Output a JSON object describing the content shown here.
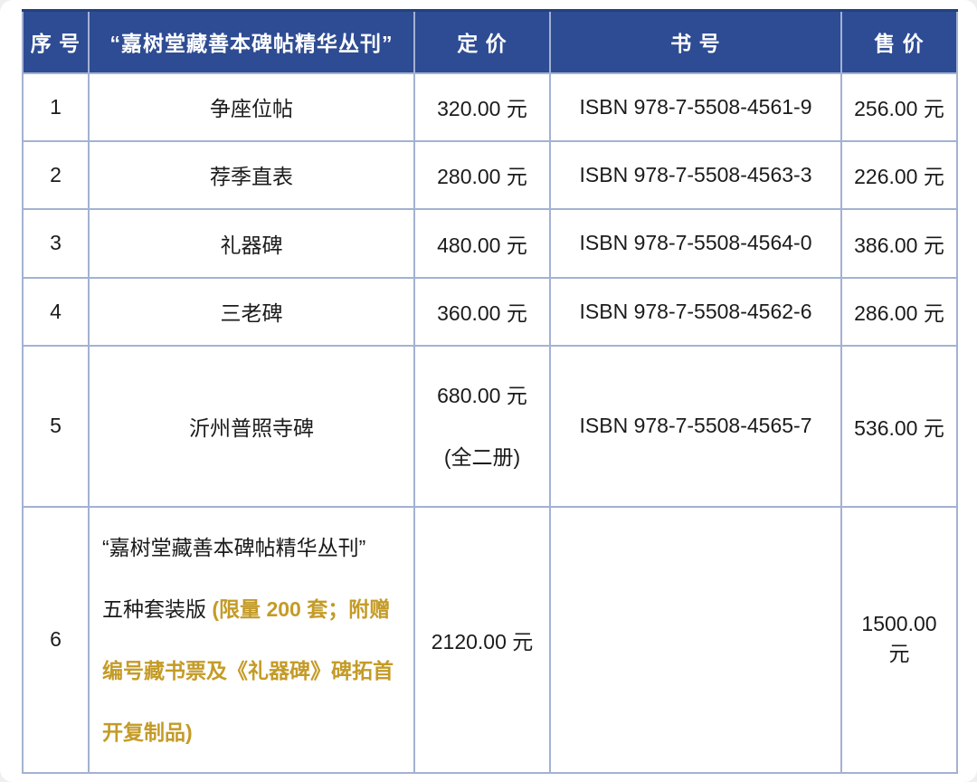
{
  "colors": {
    "header_background": "#2e4c93",
    "header_text": "#ffffff",
    "grid_border": "#a3b2d2",
    "body_text": "#1b1b1b",
    "highlight_gold": "#c49b27",
    "page_background": "#efefef",
    "card_background": "#ffffff"
  },
  "table": {
    "columns": [
      {
        "label": "序 号"
      },
      {
        "label": "“嘉树堂藏善本碑帖精华丛刊”"
      },
      {
        "label": "定 价"
      },
      {
        "label": "书 号"
      },
      {
        "label": "售 价"
      }
    ],
    "rows": [
      {
        "seq": "1",
        "title": "争座位帖",
        "price_lines": [
          "320.00 元"
        ],
        "isbn": "ISBN 978-7-5508-4561-9",
        "sale": "256.00 元"
      },
      {
        "seq": "2",
        "title": "荐季直表",
        "price_lines": [
          "280.00 元"
        ],
        "isbn": "ISBN 978-7-5508-4563-3",
        "sale": "226.00 元"
      },
      {
        "seq": "3",
        "title": "礼器碑",
        "price_lines": [
          "480.00 元"
        ],
        "isbn": "ISBN 978-7-5508-4564-0",
        "sale": "386.00 元"
      },
      {
        "seq": "4",
        "title": "三老碑",
        "price_lines": [
          "360.00 元"
        ],
        "isbn": "ISBN 978-7-5508-4562-6",
        "sale": "286.00 元"
      },
      {
        "seq": "5",
        "title": "沂州普照寺碑",
        "price_lines": [
          "680.00 元",
          "(全二册)"
        ],
        "isbn": "ISBN 978-7-5508-4565-7",
        "sale": "536.00 元"
      },
      {
        "seq": "6",
        "title_lines": [
          [
            {
              "t": "“嘉树堂藏善本碑帖精华丛刊”"
            }
          ],
          [
            {
              "t": "五种套装版 "
            },
            {
              "t": "(限量 200 套；附赠",
              "gold": true
            }
          ],
          [
            {
              "t": "编号藏书票及《礼器碑》碑拓首",
              "gold": true
            }
          ],
          [
            {
              "t": "开复制品)",
              "gold": true
            }
          ]
        ],
        "price_lines": [
          "2120.00 元"
        ],
        "isbn": "",
        "sale": "1500.00 元"
      }
    ]
  }
}
